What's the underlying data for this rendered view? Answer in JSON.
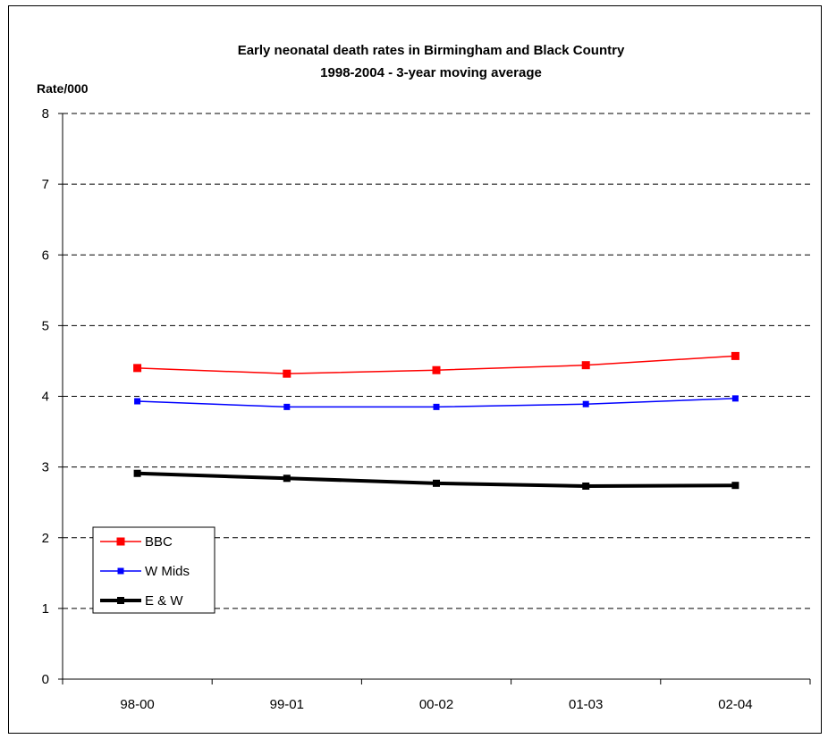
{
  "chart_data": {
    "type": "line",
    "title": "Early neonatal death rates in Birmingham and Black Country",
    "subtitle": "1998-2004  - 3-year moving average",
    "ylabel": "Rate/000",
    "xlabel": "",
    "categories": [
      "98-00",
      "99-01",
      "00-02",
      "01-03",
      "02-04"
    ],
    "ylim": [
      0,
      8
    ],
    "yticks": [
      0,
      1,
      2,
      3,
      4,
      5,
      6,
      7,
      8
    ],
    "grid": "horizontal dashed",
    "legend_position": "bottom-left",
    "series": [
      {
        "name": "BBC",
        "color": "#ff0000",
        "values": [
          4.4,
          4.32,
          4.37,
          4.44,
          4.57
        ]
      },
      {
        "name": "W Mids",
        "color": "#0000ff",
        "values": [
          3.93,
          3.85,
          3.85,
          3.89,
          3.97
        ]
      },
      {
        "name": "E & W",
        "color": "#000000",
        "values": [
          2.91,
          2.84,
          2.77,
          2.73,
          2.74
        ]
      }
    ]
  }
}
